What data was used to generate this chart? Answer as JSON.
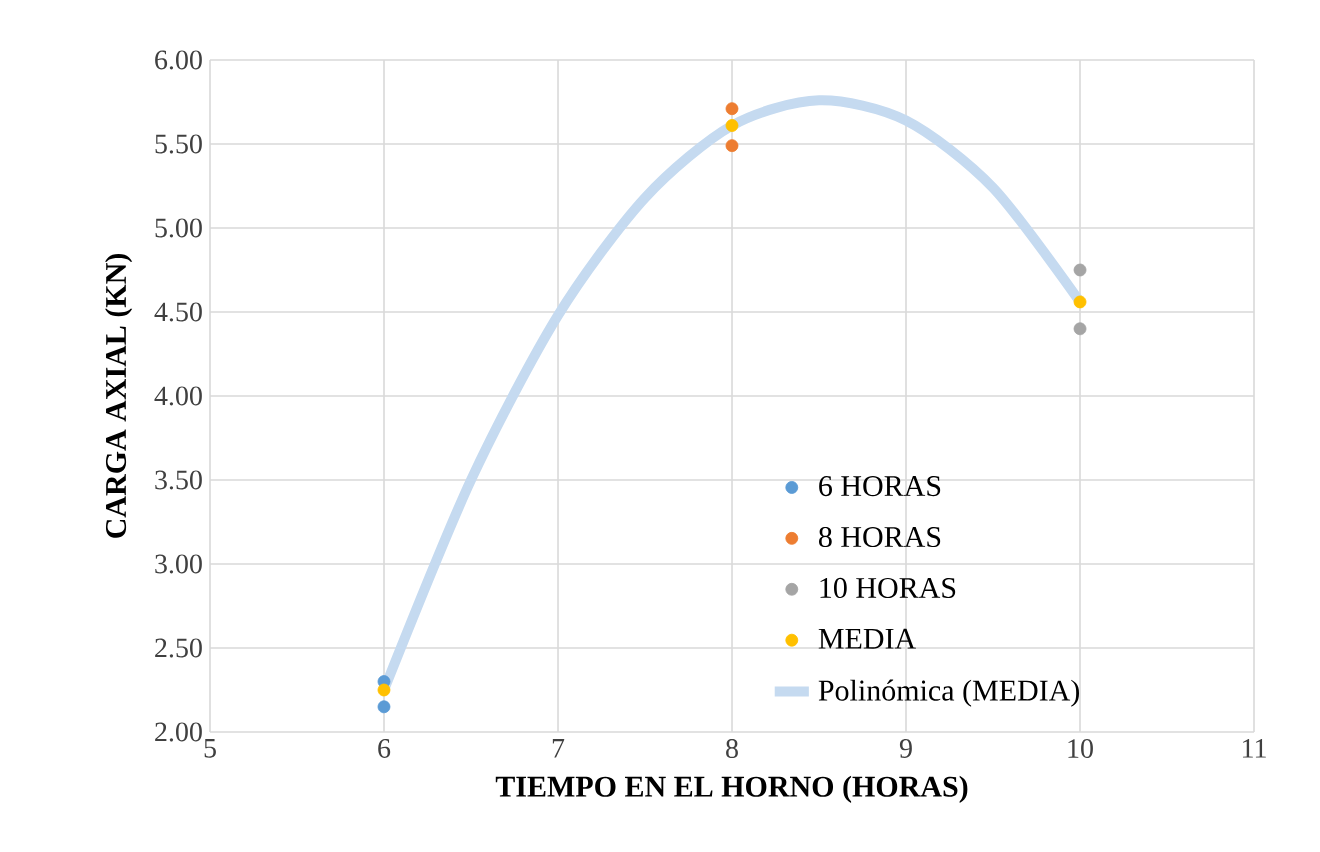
{
  "chart_data": {
    "type": "scatter",
    "xlabel": "TIEMPO EN EL HORNO (HORAS)",
    "ylabel": "CARGA AXIAL (KN)",
    "xlim": [
      5,
      11
    ],
    "xticks": [
      5,
      6,
      7,
      8,
      9,
      10,
      11
    ],
    "ylim": [
      2,
      6
    ],
    "yticks": [
      {
        "value": 2,
        "label": "2.00"
      },
      {
        "value": 2.5,
        "label": "2.50"
      },
      {
        "value": 3,
        "label": "3.00"
      },
      {
        "value": 3.5,
        "label": "3.50"
      },
      {
        "value": 4,
        "label": "4.00"
      },
      {
        "value": 4.5,
        "label": "4.50"
      },
      {
        "value": 5,
        "label": "5.00"
      },
      {
        "value": 5.5,
        "label": "5.50"
      },
      {
        "value": 6,
        "label": "6.00"
      }
    ],
    "grid": true,
    "legend": "bottom right",
    "marker": "circle",
    "series": [
      {
        "name": "6 HORAS",
        "color": "#5b9bd5",
        "x": [
          6,
          6
        ],
        "values": [
          2.3,
          2.15
        ]
      },
      {
        "name": "8 HORAS",
        "color": "#ed7d31",
        "x": [
          8,
          8
        ],
        "values": [
          5.71,
          5.49
        ]
      },
      {
        "name": "10 HORAS",
        "color": "#a5a5a5",
        "x": [
          10,
          10
        ],
        "values": [
          4.75,
          4.4
        ]
      },
      {
        "name": "MEDIA",
        "color": "#ffc000",
        "x": [
          6,
          8,
          10
        ],
        "values": [
          2.25,
          5.61,
          4.56
        ]
      },
      {
        "name": "Polinómica (MEDIA)",
        "type": "line",
        "marker": "none",
        "color": "#c5daf0",
        "x": [
          6,
          6.5,
          7,
          7.5,
          8,
          8.5,
          9,
          9.5,
          10
        ],
        "values": [
          2.25,
          3.5,
          4.48,
          5.18,
          5.61,
          5.76,
          5.64,
          5.24,
          4.56
        ]
      }
    ]
  }
}
